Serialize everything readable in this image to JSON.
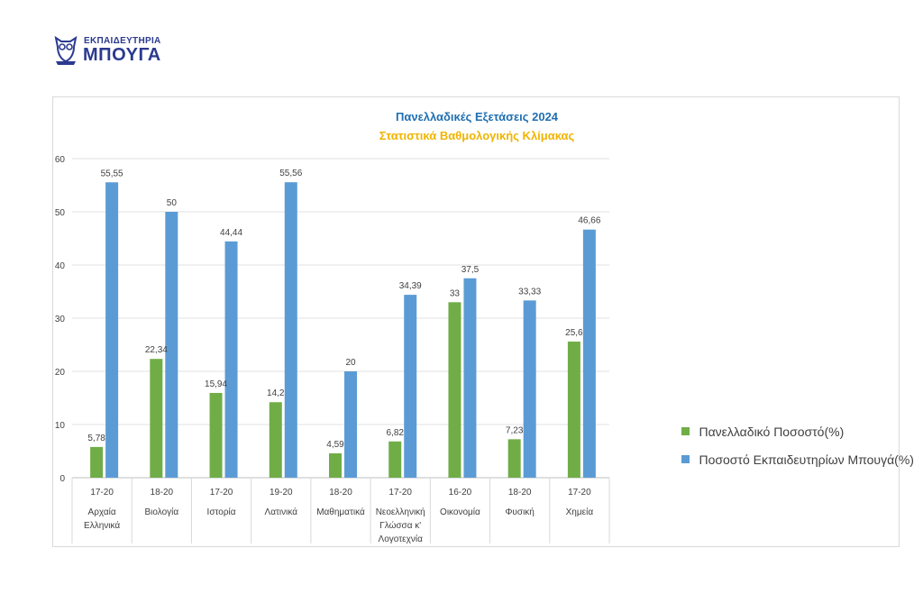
{
  "brand": {
    "line1": "ΕΚΠΑΙΔΕΥΤΗΡΙΑ",
    "line2": "ΜΠΟΥΓΑ",
    "color": "#2b3a8f"
  },
  "chart_data": {
    "type": "bar",
    "title": "Πανελλαδικές Εξετάσεις 2024",
    "subtitle": "Στατιστικά Βαθμολογικής Κλίμακας",
    "title_color": "#1f6fb2",
    "subtitle_color": "#f0b400",
    "ylim": [
      0,
      60
    ],
    "yticks": [
      0,
      10,
      20,
      30,
      40,
      50,
      60
    ],
    "grid": true,
    "legend_position": "right",
    "categories": [
      {
        "range": "17-20",
        "lines": [
          "Αρχαία",
          "Ελληνικά"
        ]
      },
      {
        "range": "18-20",
        "lines": [
          "Βιολογία"
        ]
      },
      {
        "range": "17-20",
        "lines": [
          "Ιστορία"
        ]
      },
      {
        "range": "19-20",
        "lines": [
          "Λατινικά"
        ]
      },
      {
        "range": "18-20",
        "lines": [
          "Μαθηματικά"
        ]
      },
      {
        "range": "17-20",
        "lines": [
          "Νεοελληνική",
          "Γλώσσα κ'",
          "Λογοτεχνία"
        ]
      },
      {
        "range": "16-20",
        "lines": [
          "Οικονομία"
        ]
      },
      {
        "range": "18-20",
        "lines": [
          "Φυσική"
        ]
      },
      {
        "range": "17-20",
        "lines": [
          "Χημεία"
        ]
      }
    ],
    "series": [
      {
        "name": "Πανελλαδικό Ποσοστό(%)",
        "color": "#70ad47",
        "values": [
          5.78,
          22.34,
          15.94,
          14.2,
          4.59,
          6.82,
          33,
          7.23,
          25.6
        ],
        "labels": [
          "5,78",
          "22,34",
          "15,94",
          "14,2",
          "4,59",
          "6,82",
          "33",
          "7,23",
          "25,6"
        ]
      },
      {
        "name": "Ποσοστό Εκπαιδευτηρίων Μπουγά(%)",
        "color": "#5b9bd5",
        "values": [
          55.55,
          50,
          44.44,
          55.56,
          20,
          34.39,
          37.5,
          33.33,
          46.66
        ],
        "labels": [
          "55,55",
          "50",
          "44,44",
          "55,56",
          "20",
          "34,39",
          "37,5",
          "33,33",
          "46,66"
        ]
      }
    ]
  }
}
